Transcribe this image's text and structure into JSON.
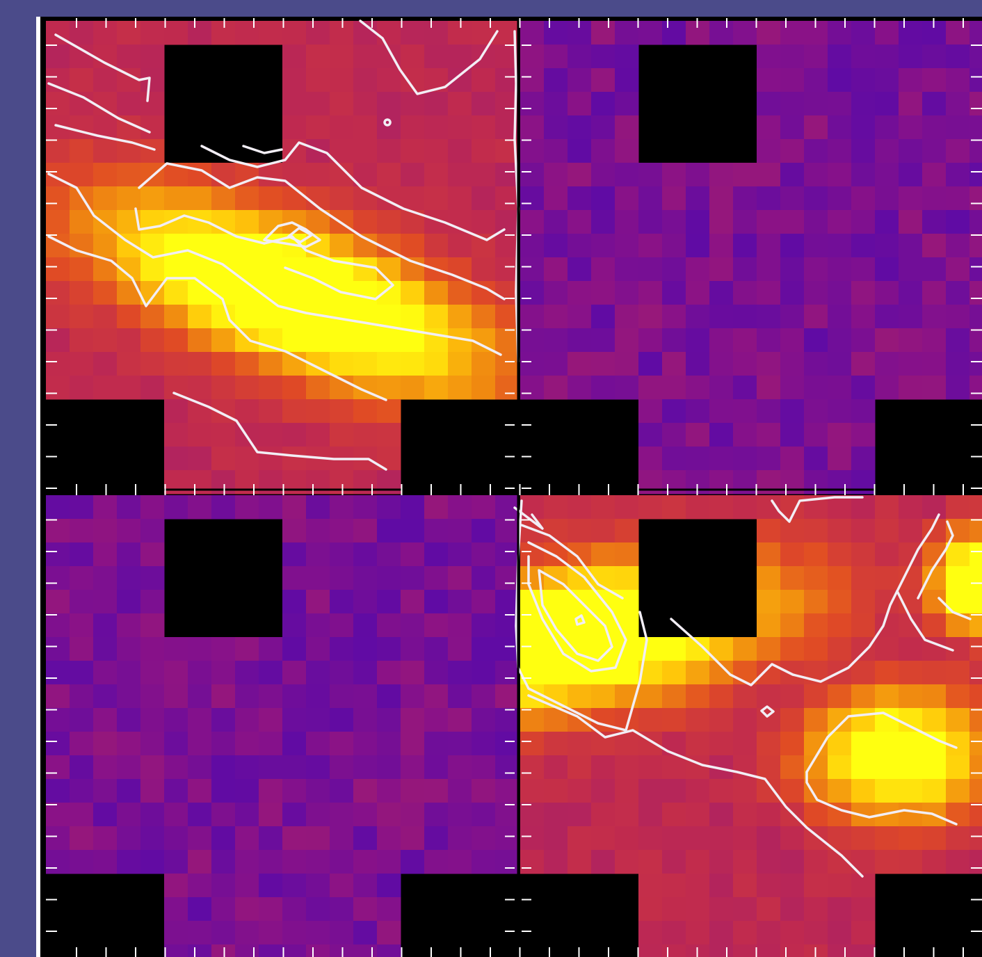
{
  "figure": {
    "background_color": "#4b4b8a",
    "frame_color": "#ffffff",
    "masked_color": "#000000",
    "contour_color": "#ffffff",
    "colormap": [
      "#0a00ff",
      "#5a0aa8",
      "#8a1287",
      "#c02a4f",
      "#e04a25",
      "#f08a10",
      "#ffc60a",
      "#ffff10"
    ],
    "panels": [
      {
        "name": "panel-top-left",
        "intensity": "high",
        "peak": [
          0.52,
          0.58
        ],
        "ridge_angle": 20
      },
      {
        "name": "panel-top-right",
        "intensity": "low",
        "peak": [
          0.5,
          0.5
        ],
        "ridge_angle": 0
      },
      {
        "name": "panel-bottom-left",
        "intensity": "low",
        "peak": [
          0.5,
          0.5
        ],
        "ridge_angle": 0
      },
      {
        "name": "panel-bottom-right",
        "intensity": "high",
        "peak": [
          0.12,
          0.3
        ],
        "ridge_angle": -10
      }
    ]
  }
}
